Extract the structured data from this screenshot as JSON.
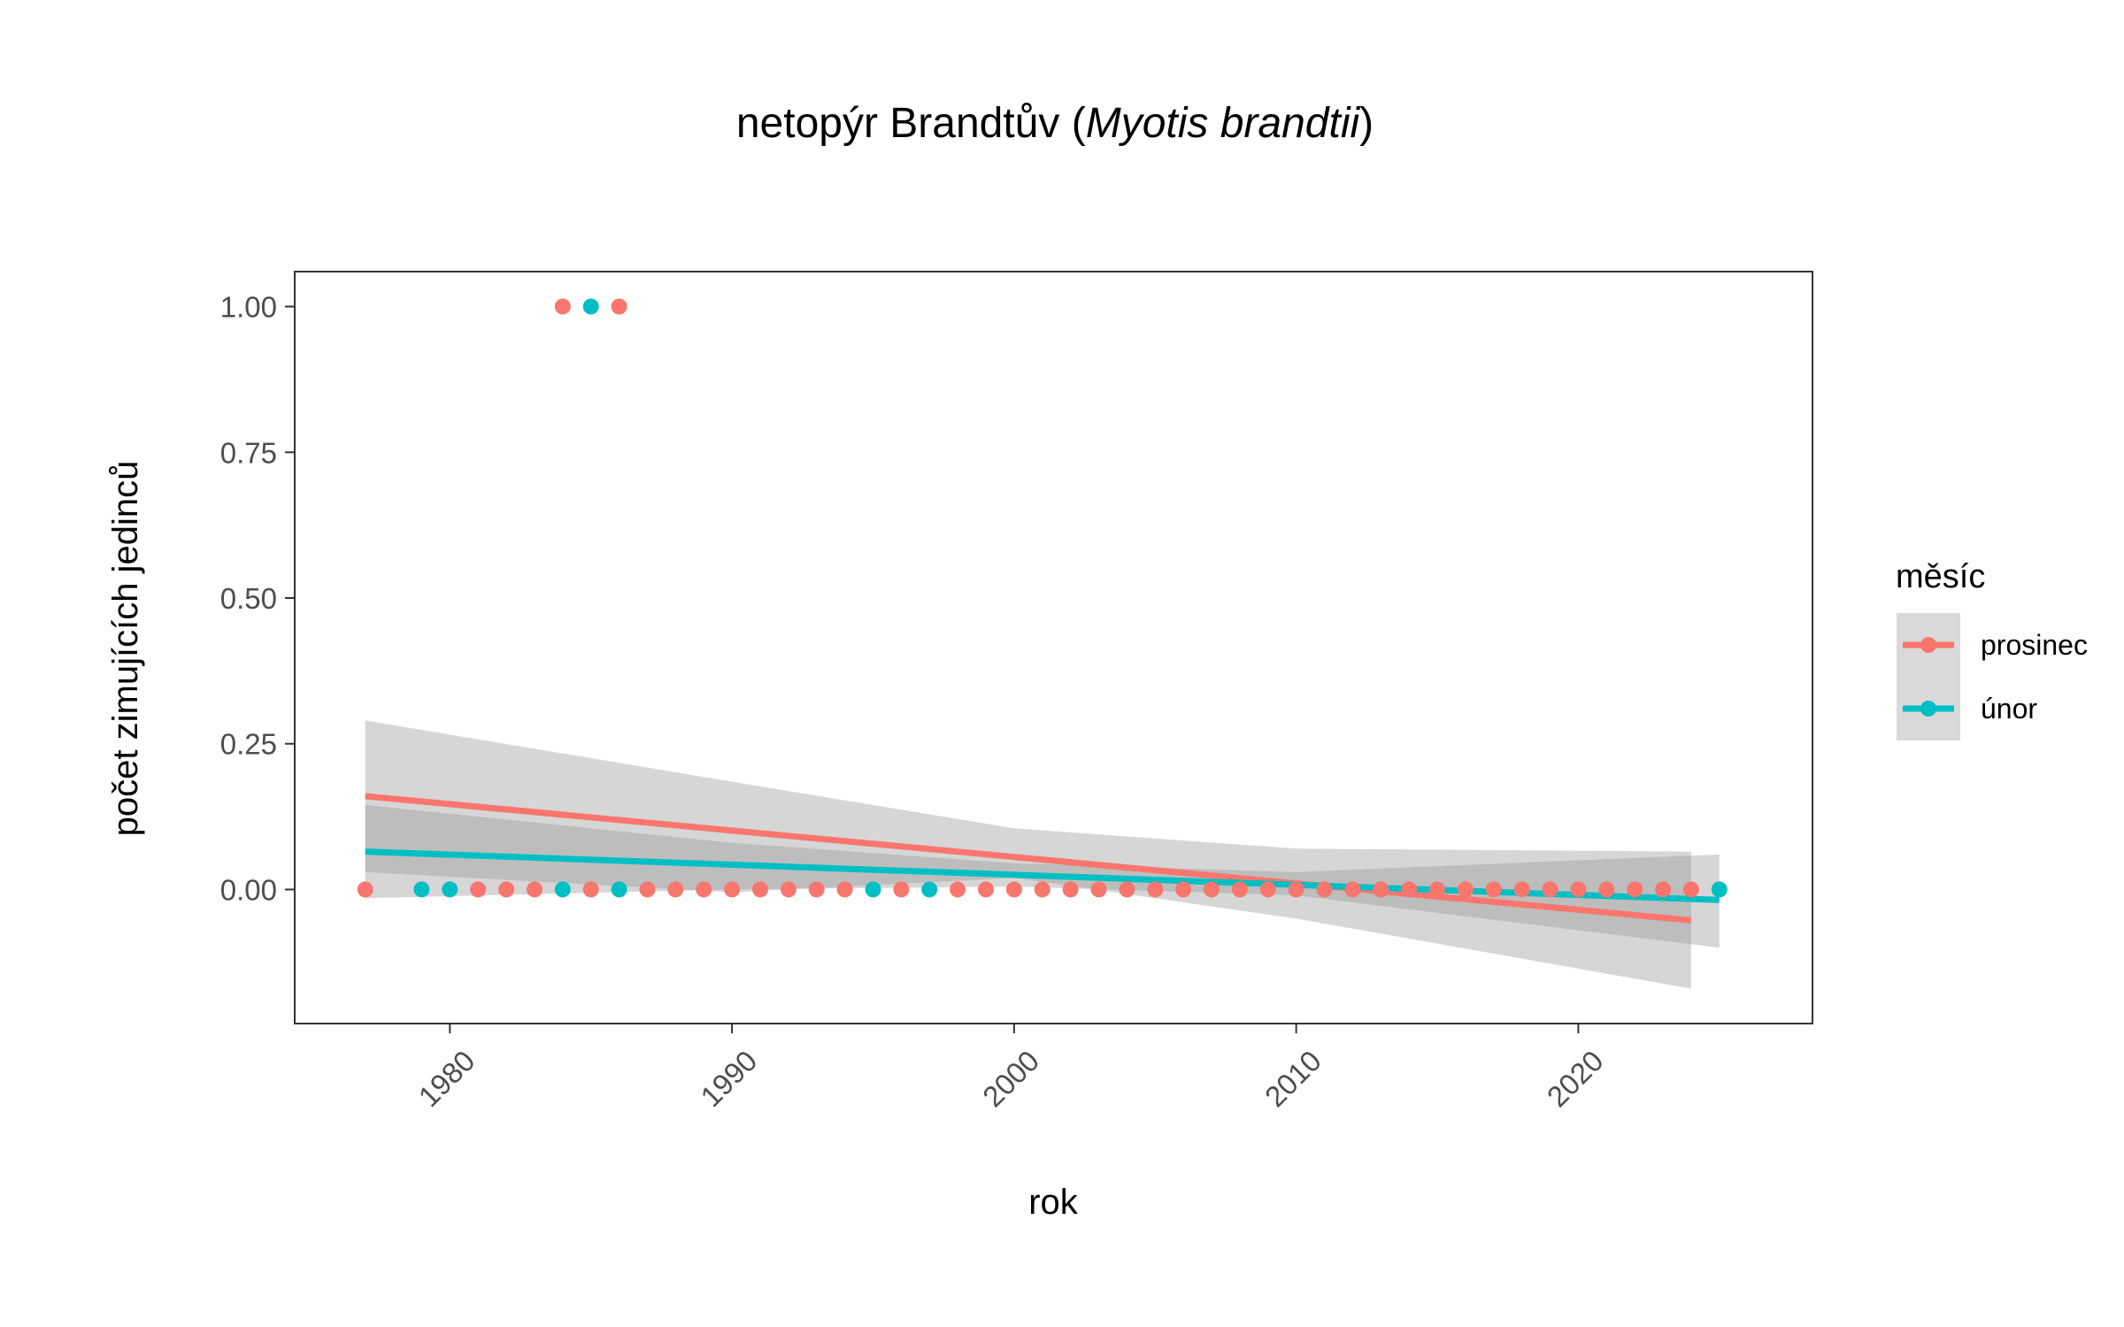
{
  "chart_data": {
    "type": "scatter",
    "title": "netopýr Brandtův (",
    "title_italic": "Myotis brandtii",
    "title_suffix": ")",
    "xlabel": "rok",
    "ylabel": "počet zimujících jedinců",
    "xlim": [
      1974.5,
      2028.3
    ],
    "ylim": [
      -0.23,
      1.06
    ],
    "x_ticks": [
      1980,
      1990,
      2000,
      2010,
      2020
    ],
    "x_tick_labels": [
      "1980",
      "1990",
      "2000",
      "2010",
      "2020"
    ],
    "y_ticks": [
      0,
      0.25,
      0.5,
      0.75,
      1.0
    ],
    "y_tick_labels": [
      "0.00",
      "0.25",
      "0.50",
      "0.75",
      "1.00"
    ],
    "grid": false,
    "legend": {
      "title": "měsíc",
      "position": "right"
    },
    "series": [
      {
        "name": "prosinec",
        "color": "#F8766D",
        "points": [
          [
            1977,
            0
          ],
          [
            1981,
            0
          ],
          [
            1982,
            0
          ],
          [
            1983,
            0
          ],
          [
            1984,
            1
          ],
          [
            1985,
            0
          ],
          [
            1986,
            1
          ],
          [
            1987,
            0
          ],
          [
            1988,
            0
          ],
          [
            1989,
            0
          ],
          [
            1990,
            0
          ],
          [
            1991,
            0
          ],
          [
            1992,
            0
          ],
          [
            1993,
            0
          ],
          [
            1994,
            0
          ],
          [
            1996,
            0
          ],
          [
            1998,
            0
          ],
          [
            1999,
            0
          ],
          [
            2000,
            0
          ],
          [
            2001,
            0
          ],
          [
            2002,
            0
          ],
          [
            2003,
            0
          ],
          [
            2004,
            0
          ],
          [
            2005,
            0
          ],
          [
            2006,
            0
          ],
          [
            2007,
            0
          ],
          [
            2008,
            0
          ],
          [
            2009,
            0
          ],
          [
            2010,
            0
          ],
          [
            2011,
            0
          ],
          [
            2012,
            0
          ],
          [
            2013,
            0
          ],
          [
            2014,
            0
          ],
          [
            2015,
            0
          ],
          [
            2016,
            0
          ],
          [
            2017,
            0
          ],
          [
            2018,
            0
          ],
          [
            2019,
            0
          ],
          [
            2020,
            0
          ],
          [
            2021,
            0
          ],
          [
            2022,
            0
          ],
          [
            2023,
            0
          ],
          [
            2024,
            0
          ]
        ],
        "trend": [
          [
            1977,
            0.16
          ],
          [
            2024,
            -0.053
          ]
        ],
        "band": [
          [
            1977,
            0.03,
            0.29
          ],
          [
            1990,
            -0.005,
            0.185
          ],
          [
            2000,
            0.02,
            0.105
          ],
          [
            2010,
            -0.05,
            0.07
          ],
          [
            2024,
            -0.17,
            0.065
          ]
        ]
      },
      {
        "name": "únor",
        "color": "#00BFC4",
        "points": [
          [
            1979,
            0
          ],
          [
            1980,
            0
          ],
          [
            1984,
            0
          ],
          [
            1985,
            1
          ],
          [
            1986,
            0
          ],
          [
            1995,
            0
          ],
          [
            1997,
            0
          ],
          [
            2025,
            0
          ]
        ],
        "trend": [
          [
            1977,
            0.065
          ],
          [
            2025,
            -0.018
          ]
        ],
        "band": [
          [
            1977,
            -0.015,
            0.145
          ],
          [
            1990,
            0.0,
            0.08
          ],
          [
            2000,
            0.005,
            0.045
          ],
          [
            2010,
            -0.01,
            0.03
          ],
          [
            2025,
            -0.1,
            0.06
          ]
        ]
      }
    ]
  }
}
